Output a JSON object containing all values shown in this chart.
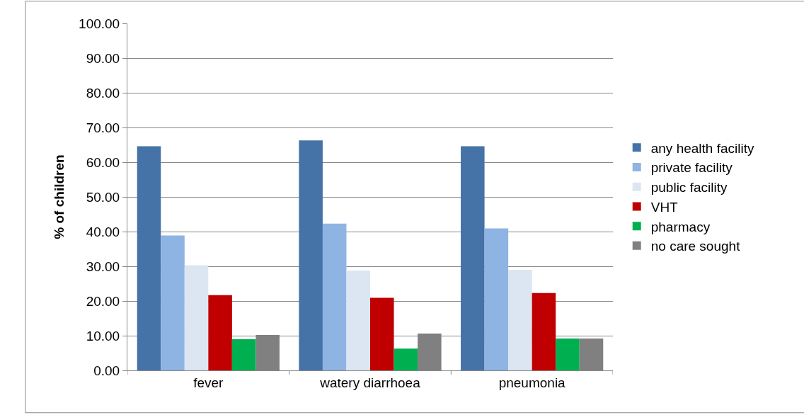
{
  "chart_data": {
    "type": "bar",
    "ylabel": "% of children",
    "categories": [
      "fever",
      "watery diarrhoea",
      "pneumonia"
    ],
    "series": [
      {
        "name": "any health facility",
        "color": "#4572a7",
        "values": [
          64.6,
          66.3,
          64.6
        ]
      },
      {
        "name": "private facility",
        "color": "#8eb4e3",
        "values": [
          38.9,
          42.3,
          40.9
        ]
      },
      {
        "name": "public facility",
        "color": "#dce6f2",
        "values": [
          30.3,
          28.8,
          29.0
        ]
      },
      {
        "name": "VHT",
        "color": "#c00000",
        "values": [
          21.7,
          20.9,
          22.3
        ]
      },
      {
        "name": "pharmacy",
        "color": "#00b050",
        "values": [
          9.0,
          6.3,
          9.2
        ]
      },
      {
        "name": "no care sought",
        "color": "#808080",
        "values": [
          10.2,
          10.6,
          9.2
        ]
      }
    ],
    "ylim": [
      0,
      100
    ],
    "yticks": [
      {
        "value": 0,
        "label": "0.00"
      },
      {
        "value": 10,
        "label": "10.00"
      },
      {
        "value": 20,
        "label": "20.00"
      },
      {
        "value": 30,
        "label": "30.00"
      },
      {
        "value": 40,
        "label": "40.00"
      },
      {
        "value": 50,
        "label": "50.00"
      },
      {
        "value": 60,
        "label": "60.00"
      },
      {
        "value": 70,
        "label": "70.00"
      },
      {
        "value": 80,
        "label": "80.00"
      },
      {
        "value": 90,
        "label": "90.00"
      },
      {
        "value": 100,
        "label": "100.00"
      }
    ],
    "grid": "y",
    "legend": "right"
  }
}
